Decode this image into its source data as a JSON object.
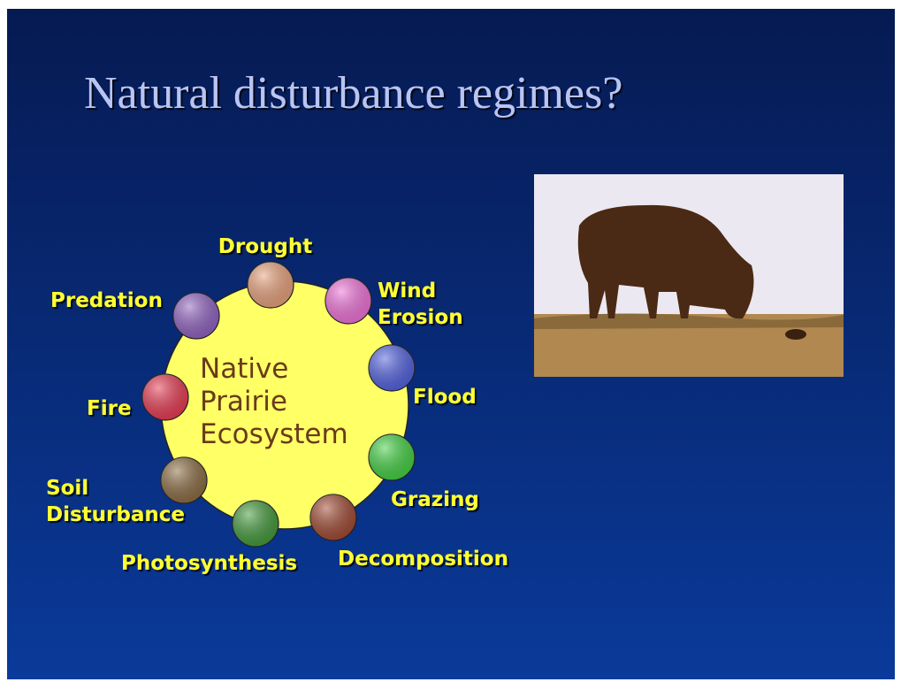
{
  "title": "Natural disturbance regimes?",
  "center": {
    "lines": [
      "Native",
      "Prairie",
      "Ecosystem"
    ]
  },
  "nodes": [
    {
      "lines": [
        "Drought"
      ],
      "color": "#e8a07a"
    },
    {
      "lines": [
        "Wind",
        "Erosion"
      ],
      "color": "#f070d8"
    },
    {
      "lines": [
        "Flood"
      ],
      "color": "#5060e0"
    },
    {
      "lines": [
        "Grazing"
      ],
      "color": "#40d040"
    },
    {
      "lines": [
        "Decomposition"
      ],
      "color": "#a04830"
    },
    {
      "lines": [
        "Photosynthesis"
      ],
      "color": "#409838"
    },
    {
      "lines": [
        "Soil",
        "Disturbance"
      ],
      "color": "#8a6a40"
    },
    {
      "lines": [
        "Fire"
      ],
      "color": "#e83850"
    },
    {
      "lines": [
        "Predation"
      ],
      "color": "#9060c0"
    }
  ]
}
